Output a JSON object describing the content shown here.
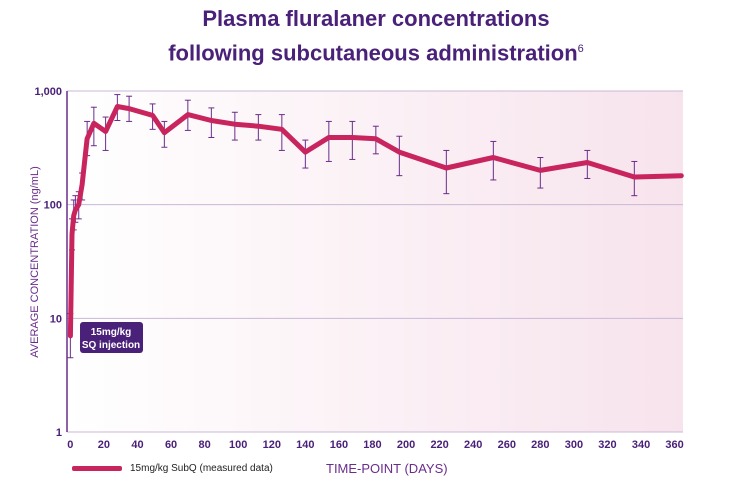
{
  "chart_data": {
    "type": "line",
    "title_line1": "Plasma fluralaner concentrations",
    "title_line2": "following subcutaneous administration",
    "title_superscript": "6",
    "xlabel": "TIME-POINT (DAYS)",
    "ylabel": "AVERAGE CONCENTRATION (ng/mL)",
    "yscale": "log",
    "ylim": [
      1,
      1000
    ],
    "xlim": [
      -2,
      365
    ],
    "y_ticks": [
      "1",
      "10",
      "100",
      "1,000"
    ],
    "x_ticks": [
      "0",
      "20",
      "40",
      "60",
      "80",
      "100",
      "120",
      "140",
      "160",
      "180",
      "200",
      "220",
      "240",
      "260",
      "280",
      "300",
      "320",
      "340",
      "360"
    ],
    "grid": true,
    "legend_position": "bottom-left",
    "annotation": [
      "15mg/kg",
      "SQ injection"
    ],
    "colors": {
      "line": "#c8245d",
      "error_bar": "#6a2d8c",
      "axis_text": "#4a2178",
      "background": "#f8e6ef"
    },
    "series": [
      {
        "name": "15mg/kg SubQ (measured data)",
        "x": [
          0,
          1,
          2,
          3,
          5,
          7,
          10,
          14,
          21,
          28,
          35,
          49,
          56,
          70,
          84,
          98,
          112,
          126,
          140,
          154,
          168,
          182,
          196,
          224,
          252,
          280,
          308,
          336,
          364
        ],
        "y": [
          7,
          55,
          80,
          90,
          100,
          150,
          380,
          520,
          440,
          730,
          700,
          610,
          430,
          620,
          550,
          510,
          490,
          460,
          290,
          390,
          390,
          380,
          290,
          210,
          260,
          200,
          235,
          175,
          180
        ],
        "err_low": [
          4.5,
          40,
          60,
          70,
          75,
          110,
          270,
          330,
          300,
          550,
          540,
          460,
          320,
          450,
          390,
          370,
          370,
          300,
          210,
          240,
          250,
          280,
          180,
          125,
          165,
          140,
          170,
          120,
          180
        ],
        "err_high": [
          11,
          75,
          110,
          120,
          130,
          190,
          540,
          720,
          590,
          930,
          900,
          770,
          540,
          830,
          710,
          650,
          620,
          620,
          370,
          540,
          540,
          490,
          400,
          300,
          360,
          260,
          300,
          240,
          180
        ]
      }
    ]
  }
}
